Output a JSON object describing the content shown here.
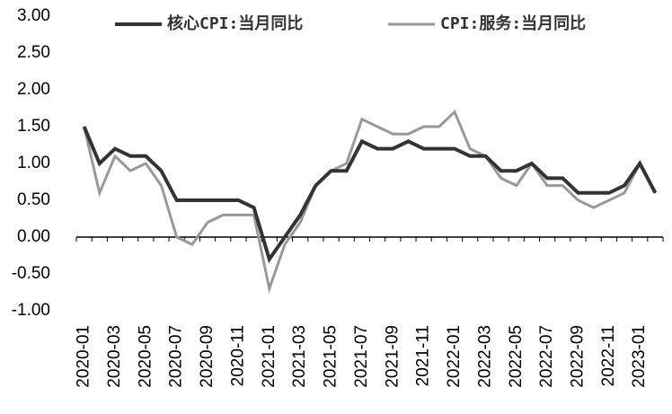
{
  "chart_data": {
    "type": "line",
    "categories": [
      "2020-01",
      null,
      "2020-03",
      null,
      "2020-05",
      null,
      "2020-07",
      null,
      "2020-09",
      null,
      "2020-11",
      null,
      "2021-01",
      null,
      "2021-03",
      null,
      "2021-05",
      null,
      "2021-07",
      null,
      "2021-09",
      null,
      "2021-11",
      null,
      "2022-01",
      null,
      "2022-03",
      null,
      "2022-05",
      null,
      "2022-07",
      null,
      "2022-09",
      null,
      "2022-11",
      null,
      "2023-01",
      null
    ],
    "series": [
      {
        "name": "核心CPI:当月同比",
        "color": "#333333",
        "values": [
          1.5,
          1.0,
          1.2,
          1.1,
          1.1,
          0.9,
          0.5,
          0.5,
          0.5,
          0.5,
          0.5,
          0.4,
          -0.3,
          0.0,
          0.3,
          0.7,
          0.9,
          0.9,
          1.3,
          1.2,
          1.2,
          1.3,
          1.2,
          1.2,
          1.2,
          1.1,
          1.1,
          0.9,
          0.9,
          1.0,
          0.8,
          0.8,
          0.6,
          0.6,
          0.6,
          0.7,
          1.0,
          0.6
        ]
      },
      {
        "name": "CPI:服务:当月同比",
        "color": "#999999",
        "values": [
          1.5,
          0.6,
          1.1,
          0.9,
          1.0,
          0.7,
          0.0,
          -0.1,
          0.2,
          0.3,
          0.3,
          0.3,
          -0.7,
          -0.1,
          0.2,
          0.7,
          0.9,
          1.0,
          1.6,
          1.5,
          1.4,
          1.4,
          1.5,
          1.5,
          1.7,
          1.2,
          1.1,
          0.8,
          0.7,
          1.0,
          0.7,
          0.7,
          0.5,
          0.4,
          0.5,
          0.6,
          1.0,
          0.6
        ]
      }
    ],
    "ylim": [
      -1,
      3
    ],
    "yticks": [
      {
        "value": -1,
        "label": "-1.00"
      },
      {
        "value": -0.5,
        "label": "-0.50"
      },
      {
        "value": 0,
        "label": "0.00"
      },
      {
        "value": 0.5,
        "label": "0.50"
      },
      {
        "value": 1,
        "label": "1.00"
      },
      {
        "value": 1.5,
        "label": "1.50"
      },
      {
        "value": 2,
        "label": "2.00"
      },
      {
        "value": 2.5,
        "label": "2.50"
      },
      {
        "value": 3,
        "label": "3.00"
      }
    ],
    "grid": false,
    "legend": "top"
  }
}
